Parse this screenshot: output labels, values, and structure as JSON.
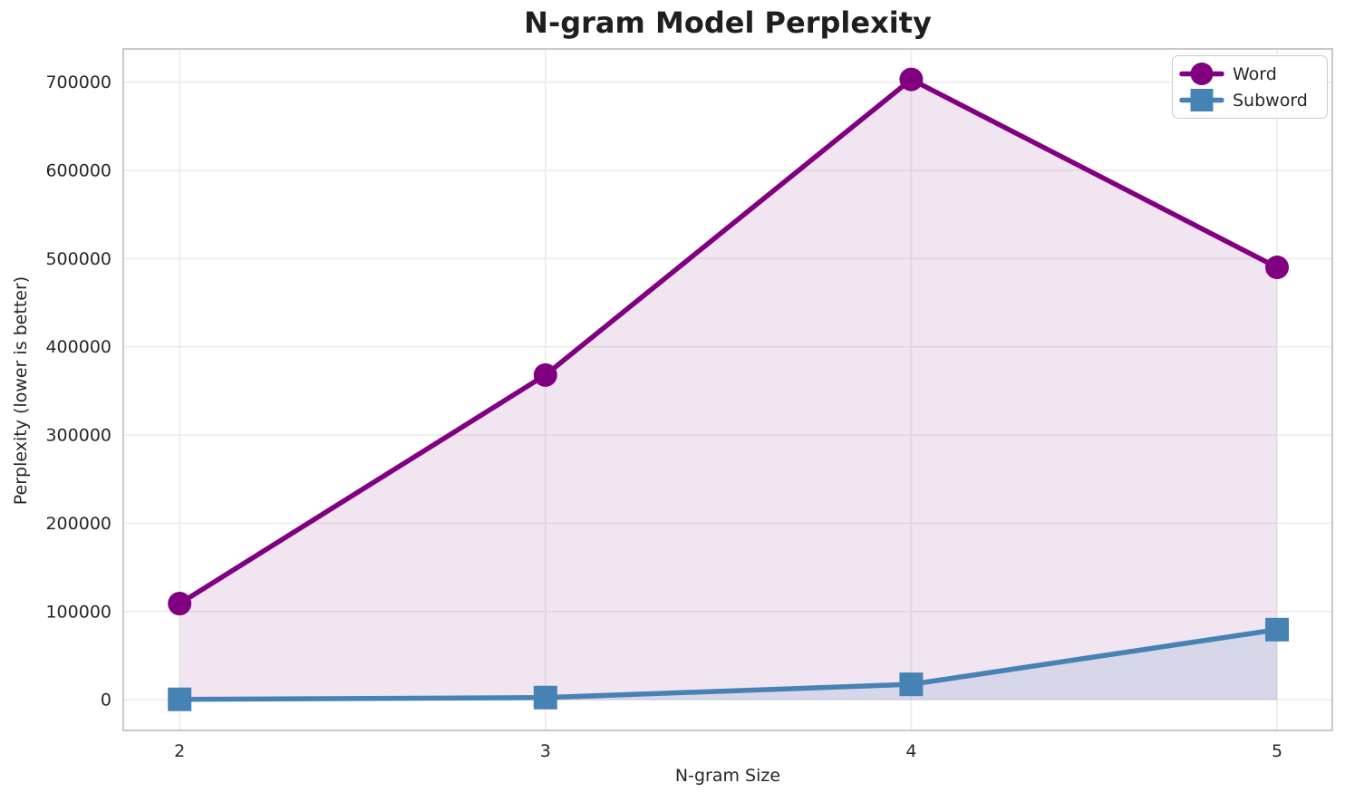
{
  "chart_data": {
    "type": "line",
    "title": "N-gram Model Perplexity",
    "xlabel": "N-gram Size",
    "ylabel": "Perplexity (lower is better)",
    "x": [
      2,
      3,
      4,
      5
    ],
    "x_tick_labels": [
      "2",
      "3",
      "4",
      "5"
    ],
    "y_ticks": [
      0,
      100000,
      200000,
      300000,
      400000,
      500000,
      600000,
      700000
    ],
    "y_tick_labels": [
      "0",
      "100000",
      "200000",
      "300000",
      "400000",
      "500000",
      "600000",
      "700000"
    ],
    "xlim": [
      1.846,
      5.151
    ],
    "ylim": [
      -34710,
      737520
    ],
    "grid": true,
    "legend_position": "upper right",
    "fill_to_zero": true,
    "series": [
      {
        "name": "Word",
        "marker": "circle",
        "color": "#800080",
        "fill_alpha": 0.1,
        "values": [
          109000,
          368000,
          703000,
          490000
        ]
      },
      {
        "name": "Subword",
        "marker": "square",
        "color": "#4682B4",
        "fill_alpha": 0.15,
        "values": [
          500,
          2500,
          17500,
          79500
        ]
      }
    ]
  },
  "style": {
    "grid_color": "#ebebeb",
    "spine_color": "#c9c9c9",
    "tick_label_color": "#262626",
    "title_color": "#1f1f1f",
    "background": "#ffffff"
  }
}
